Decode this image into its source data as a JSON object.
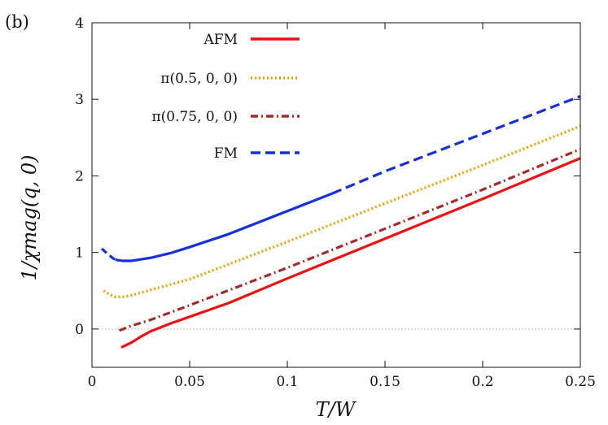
{
  "chart_data": {
    "type": "line",
    "panel_label": "(b)",
    "xlabel": "T/W",
    "ylabel": "1/χmag(q, 0)",
    "xlim": [
      0,
      0.25
    ],
    "ylim": [
      -0.5,
      4
    ],
    "x_ticks": [
      0,
      0.05,
      0.1,
      0.15,
      0.2,
      0.25
    ],
    "x_tick_labels": [
      "0",
      "0.05",
      "0.1",
      "0.15",
      "0.2",
      "0.25"
    ],
    "y_ticks": [
      0,
      1,
      2,
      3,
      4
    ],
    "y_tick_labels": [
      "0",
      "1",
      "2",
      "3",
      "4"
    ],
    "reference_line_y": 0,
    "legend_position": "top-left",
    "series": [
      {
        "name": "AFM",
        "color": "#ee1111",
        "style": "solid",
        "points": [
          [
            0.015,
            -0.24
          ],
          [
            0.02,
            -0.18
          ],
          [
            0.025,
            -0.1
          ],
          [
            0.03,
            -0.03
          ],
          [
            0.035,
            0.02
          ],
          [
            0.04,
            0.07
          ],
          [
            0.05,
            0.16
          ],
          [
            0.07,
            0.34
          ],
          [
            0.1,
            0.66
          ],
          [
            0.15,
            1.18
          ],
          [
            0.2,
            1.7
          ],
          [
            0.25,
            2.23
          ]
        ]
      },
      {
        "name": "π(0.5, 0, 0)",
        "color": "#f0a000",
        "style": "dotted",
        "points": [
          [
            0.006,
            0.5
          ],
          [
            0.009,
            0.45
          ],
          [
            0.012,
            0.42
          ],
          [
            0.016,
            0.42
          ],
          [
            0.02,
            0.44
          ],
          [
            0.03,
            0.51
          ],
          [
            0.05,
            0.65
          ],
          [
            0.1,
            1.14
          ],
          [
            0.15,
            1.64
          ],
          [
            0.2,
            2.14
          ],
          [
            0.25,
            2.65
          ]
        ]
      },
      {
        "name": "π(0.75, 0, 0)",
        "color": "#a52a2a",
        "style": "dashdot",
        "points": [
          [
            0.014,
            -0.02
          ],
          [
            0.02,
            0.04
          ],
          [
            0.03,
            0.12
          ],
          [
            0.05,
            0.31
          ],
          [
            0.1,
            0.8
          ],
          [
            0.15,
            1.31
          ],
          [
            0.2,
            1.82
          ],
          [
            0.25,
            2.35
          ]
        ]
      },
      {
        "name": "FM",
        "color": "#1530dd",
        "style": "mixed",
        "points": [
          [
            0.005,
            1.05
          ],
          [
            0.008,
            0.98
          ],
          [
            0.011,
            0.92
          ],
          [
            0.013,
            0.9
          ],
          [
            0.016,
            0.89
          ],
          [
            0.02,
            0.89
          ],
          [
            0.025,
            0.91
          ],
          [
            0.03,
            0.93
          ],
          [
            0.04,
            0.99
          ],
          [
            0.05,
            1.07
          ],
          [
            0.07,
            1.24
          ],
          [
            0.1,
            1.54
          ],
          [
            0.123,
            1.77
          ],
          [
            0.15,
            2.06
          ],
          [
            0.2,
            2.55
          ],
          [
            0.25,
            3.04
          ]
        ]
      }
    ]
  }
}
